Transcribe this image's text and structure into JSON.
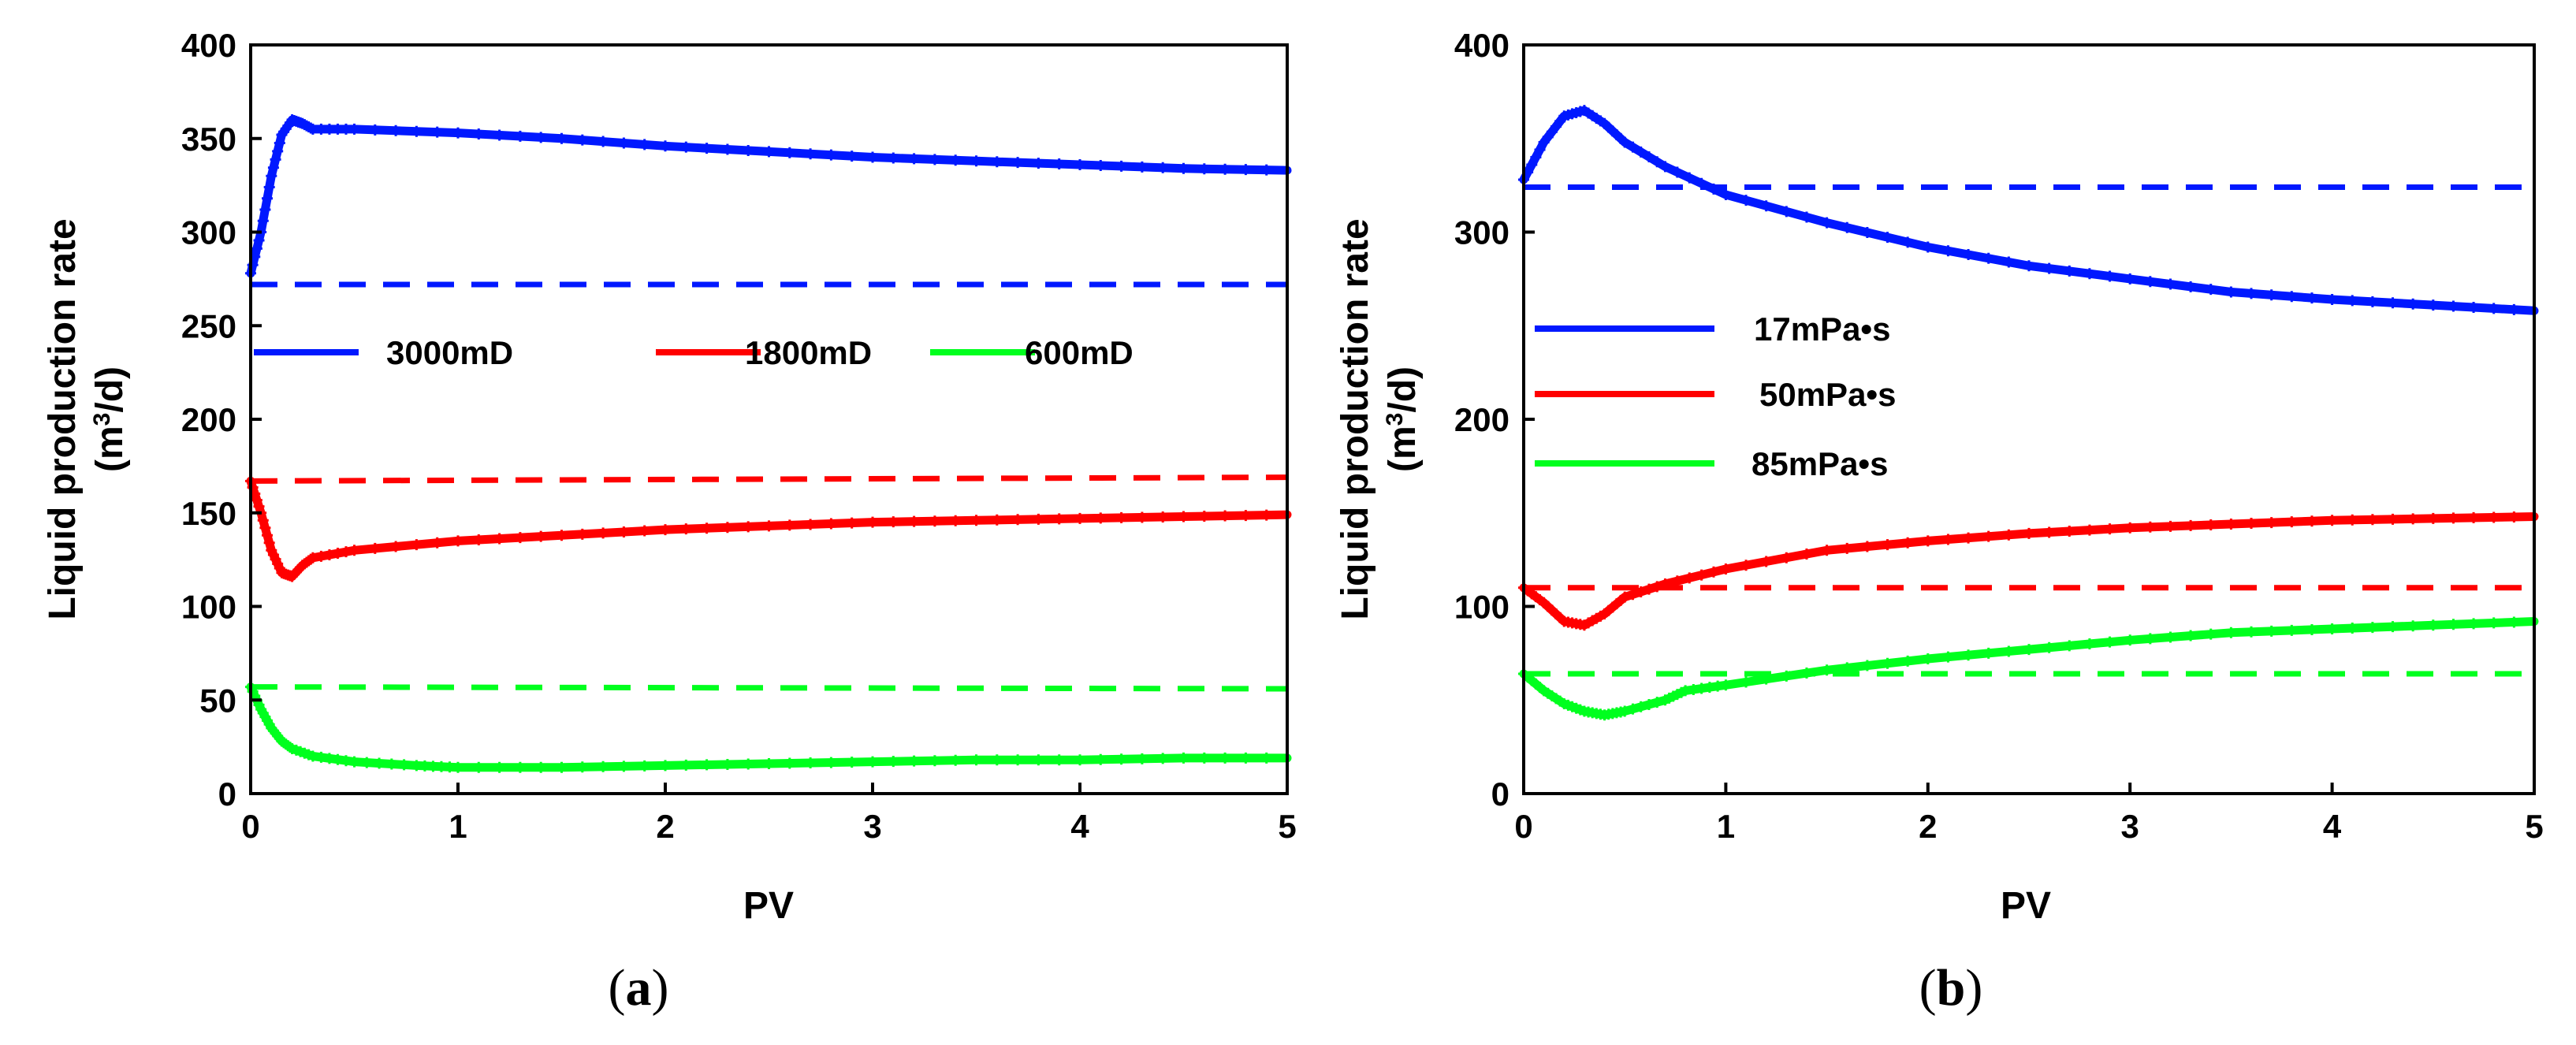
{
  "chart_data": [
    {
      "type": "line",
      "panel_label": {
        "open": "(",
        "letter": "a",
        "close": ")"
      },
      "xlabel": "PV",
      "ylabel_line1": "Liquid  production rate",
      "ylabel_line2_pre": "(m",
      "ylabel_line2_sup": "3",
      "ylabel_line2_post": "/d)",
      "xlim": [
        0,
        5
      ],
      "ylim": [
        0,
        400
      ],
      "xticks": [
        "0",
        "1",
        "2",
        "3",
        "4",
        "5"
      ],
      "yticks": [
        "0",
        "50",
        "100",
        "150",
        "200",
        "250",
        "300",
        "350",
        "400"
      ],
      "grid": false,
      "legend_placement": "middle",
      "series": [
        {
          "name": "3000mD",
          "color": "#0018ff",
          "x": [
            0,
            0.05,
            0.1,
            0.15,
            0.2,
            0.25,
            0.3,
            0.5,
            1,
            1.5,
            2,
            2.5,
            3,
            3.5,
            4,
            4.5,
            5
          ],
          "y": [
            278,
            300,
            330,
            352,
            360,
            358,
            355,
            355,
            353,
            350,
            346,
            343,
            340,
            338,
            336,
            334,
            333
          ]
        },
        {
          "name": "1800mD",
          "color": "#ff0000",
          "x": [
            0,
            0.05,
            0.1,
            0.15,
            0.2,
            0.25,
            0.3,
            0.5,
            1,
            1.5,
            2,
            2.5,
            3,
            3.5,
            4,
            4.5,
            5
          ],
          "y": [
            167,
            150,
            130,
            118,
            116,
            122,
            126,
            130,
            135,
            138,
            141,
            143,
            145,
            146,
            147,
            148,
            149
          ]
        },
        {
          "name": "600mD",
          "color": "#00ff1e",
          "x": [
            0,
            0.05,
            0.1,
            0.15,
            0.2,
            0.3,
            0.5,
            0.8,
            1,
            1.5,
            2,
            2.5,
            3,
            3.5,
            4,
            4.5,
            5
          ],
          "y": [
            57,
            45,
            35,
            28,
            24,
            20,
            17,
            15,
            14,
            14,
            15,
            16,
            17,
            18,
            18,
            19,
            19
          ]
        }
      ],
      "references": [
        {
          "color": "#0018ff",
          "x": [
            0,
            5
          ],
          "y": [
            272,
            272
          ]
        },
        {
          "color": "#ff0000",
          "x": [
            0,
            5
          ],
          "y": [
            167,
            169
          ]
        },
        {
          "color": "#00ff1e",
          "x": [
            0,
            5
          ],
          "y": [
            57,
            56
          ]
        }
      ]
    },
    {
      "type": "line",
      "panel_label": {
        "open": "(",
        "letter": "b",
        "close": ")"
      },
      "xlabel": "PV",
      "ylabel_line1": "Liquid  production rate",
      "ylabel_line2_pre": "(m",
      "ylabel_line2_sup": "3",
      "ylabel_line2_post": "/d)",
      "xlim": [
        0,
        5
      ],
      "ylim": [
        0,
        400
      ],
      "xticks": [
        "0",
        "1",
        "2",
        "3",
        "4",
        "5"
      ],
      "yticks": [
        "0",
        "100",
        "200",
        "300",
        "400"
      ],
      "grid": false,
      "legend_placement": "left",
      "series": [
        {
          "name": "17mPa•s",
          "color": "#0018ff",
          "x": [
            0,
            0.1,
            0.2,
            0.3,
            0.4,
            0.5,
            0.7,
            1,
            1.5,
            2,
            2.5,
            3,
            3.5,
            4,
            4.5,
            5
          ],
          "y": [
            328,
            348,
            362,
            365,
            358,
            348,
            335,
            320,
            305,
            292,
            282,
            275,
            268,
            264,
            261,
            258
          ]
        },
        {
          "name": "50mPa•s",
          "color": "#ff0000",
          "x": [
            0,
            0.1,
            0.2,
            0.3,
            0.4,
            0.5,
            0.7,
            1,
            1.5,
            2,
            2.5,
            3,
            3.5,
            4,
            4.5,
            5
          ],
          "y": [
            110,
            102,
            92,
            90,
            96,
            105,
            112,
            120,
            130,
            135,
            139,
            142,
            144,
            146,
            147,
            148
          ]
        },
        {
          "name": "85mPa•s",
          "color": "#00ff1e",
          "x": [
            0,
            0.1,
            0.2,
            0.3,
            0.4,
            0.5,
            0.7,
            0.8,
            1,
            1.5,
            2,
            2.5,
            3,
            3.5,
            4,
            4.5,
            5
          ],
          "y": [
            64,
            55,
            48,
            44,
            42,
            44,
            50,
            55,
            58,
            66,
            72,
            77,
            82,
            86,
            88,
            90,
            92
          ]
        }
      ],
      "references": [
        {
          "color": "#0018ff",
          "x": [
            0,
            5
          ],
          "y": [
            324,
            324
          ]
        },
        {
          "color": "#ff0000",
          "x": [
            0,
            5
          ],
          "y": [
            110,
            110
          ]
        },
        {
          "color": "#00ff1e",
          "x": [
            0,
            5
          ],
          "y": [
            64,
            64
          ]
        }
      ]
    }
  ]
}
